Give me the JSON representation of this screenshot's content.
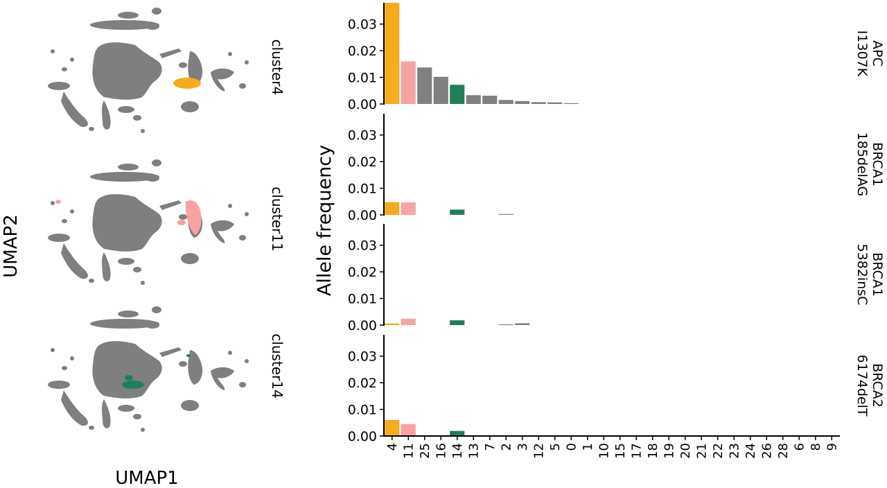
{
  "figure": {
    "umap_xlabel": "UMAP1",
    "umap_ylabel": "UMAP2",
    "bar_ylabel": "Allele frequency",
    "umap_panels": [
      {
        "label": "cluster4",
        "highlight_cluster": "4"
      },
      {
        "label": "cluster11",
        "highlight_cluster": "11"
      },
      {
        "label": "cluster14",
        "highlight_cluster": "14"
      }
    ]
  },
  "colors": {
    "cells": "#7f7f7f",
    "default_bar": "#808080",
    "highlight": {
      "4": "#f5ab1b",
      "11": "#f7a3a4",
      "14": "#1e7f58"
    }
  },
  "chart_data": {
    "type": "bar",
    "categories": [
      "4",
      "11",
      "25",
      "16",
      "14",
      "13",
      "7",
      "2",
      "3",
      "12",
      "5",
      "0",
      "1",
      "10",
      "15",
      "17",
      "18",
      "19",
      "20",
      "21",
      "22",
      "23",
      "24",
      "26",
      "28",
      "6",
      "8",
      "9"
    ],
    "ylim": [
      0,
      0.038
    ],
    "yticks": [
      0.0,
      0.01,
      0.02,
      0.03
    ],
    "ytick_labels": [
      "0.00",
      "0.01",
      "0.02",
      "0.03"
    ],
    "grid": false,
    "series": [
      {
        "name": "APC\nI1307K",
        "values": [
          0.038,
          0.016,
          0.0137,
          0.0102,
          0.0072,
          0.0033,
          0.0031,
          0.0015,
          0.0011,
          0.0007,
          0.0006,
          0.0003,
          0,
          0,
          0,
          0,
          0,
          0,
          0,
          0,
          0,
          0,
          0,
          0,
          0,
          0,
          0,
          0
        ]
      },
      {
        "name": "BRCA1\n185delAG",
        "values": [
          0.0048,
          0.0047,
          0,
          0,
          0.002,
          0,
          0,
          0.0002,
          0,
          0,
          0,
          0,
          0,
          0,
          0,
          0,
          0,
          0,
          0,
          0,
          0,
          0,
          0,
          0,
          0,
          0,
          0,
          0
        ]
      },
      {
        "name": "BRCA1\n5382insC",
        "values": [
          0.0006,
          0.0024,
          0,
          0,
          0.0018,
          0,
          0,
          0.0003,
          0.0007,
          0,
          0,
          0,
          0,
          0,
          0,
          0,
          0,
          0,
          0,
          0,
          0,
          0,
          0,
          0,
          0,
          0,
          0,
          0
        ]
      },
      {
        "name": "BRCA2\n6174delT",
        "values": [
          0.006,
          0.0045,
          0,
          0,
          0.0019,
          0,
          0,
          0,
          0,
          0,
          0,
          0,
          0,
          0,
          0,
          0,
          0,
          0,
          0,
          0,
          0,
          0,
          0,
          0,
          0,
          0,
          0,
          0
        ]
      }
    ]
  }
}
